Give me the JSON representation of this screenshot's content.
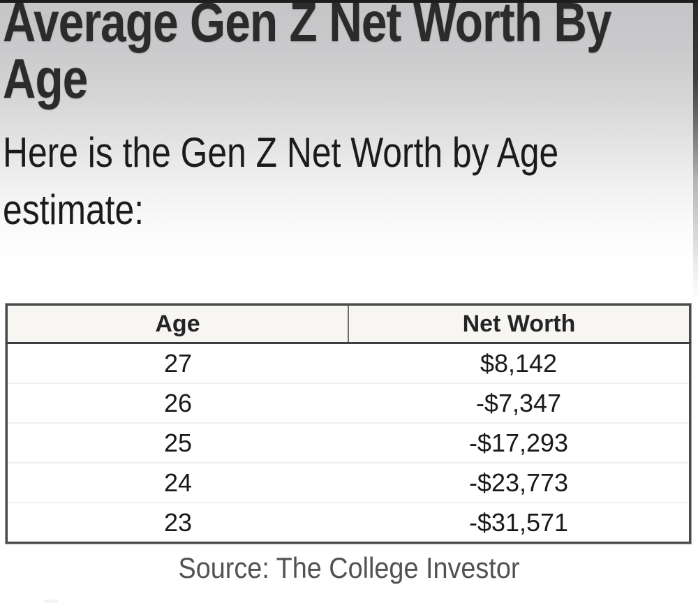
{
  "header": {
    "title_line1": "Average Gen Z Net Worth By",
    "title_line2": "Age"
  },
  "intro": {
    "line1": "Here is the Gen Z Net Worth by Age",
    "line2": "estimate:"
  },
  "table": {
    "columns": [
      "Age",
      "Net Worth"
    ],
    "rows": [
      {
        "age": "27",
        "net_worth": "$8,142"
      },
      {
        "age": "26",
        "net_worth": "-$7,347"
      },
      {
        "age": "25",
        "net_worth": "-$17,293"
      },
      {
        "age": "24",
        "net_worth": "-$23,773"
      },
      {
        "age": "23",
        "net_worth": "-$31,571"
      }
    ]
  },
  "footer": {
    "source": "Source: The College Investor"
  },
  "colors": {
    "heading_text": "#2b2b2c",
    "body_text": "#19191b",
    "table_border": "#4a4a4c",
    "table_header_bg": "#f8f6f2",
    "row_divider": "#f1efeb",
    "source_text": "#525254",
    "top_gradient_gray": "#c5c5c7",
    "edge_dark": "#1d1d1e"
  }
}
